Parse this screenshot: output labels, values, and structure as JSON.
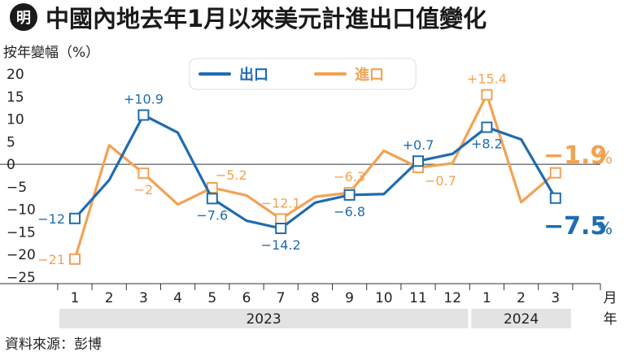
{
  "header": {
    "logo_char": "明",
    "title": "中國內地去年1月以來美元計進出口值變化"
  },
  "source": "資料來源：彭博",
  "colors": {
    "export": "#1f6cb0",
    "import": "#f2a253",
    "axis": "#333333",
    "year_band": "#e3e3e3",
    "logo_bg": "#1a1a1a"
  },
  "chart_data": {
    "type": "line",
    "ylabel": "按年變幅（%）",
    "ylim": [
      -25,
      20
    ],
    "yticks": [
      20,
      15,
      10,
      5,
      0,
      -5,
      -10,
      -15,
      -20,
      -25
    ],
    "categories": [
      "1",
      "2",
      "3",
      "4",
      "5",
      "6",
      "7",
      "8",
      "9",
      "10",
      "11",
      "12",
      "1",
      "2",
      "3"
    ],
    "month_label": "月",
    "year_label": "年",
    "years": [
      {
        "label": "2023",
        "from": 0,
        "to": 11
      },
      {
        "label": "2024",
        "from": 12,
        "to": 14
      }
    ],
    "legend": {
      "position": "top-center"
    },
    "series": [
      {
        "name": "出口",
        "key": "export",
        "values": [
          -12,
          -3.5,
          10.9,
          7,
          -7.6,
          -12.5,
          -14.2,
          -8.5,
          -6.8,
          -6.6,
          0.7,
          2.3,
          8.2,
          5.5,
          -7.5
        ],
        "labels": [
          {
            "i": 0,
            "text": "−12",
            "pos": "left"
          },
          {
            "i": 2,
            "text": "+10.9",
            "pos": "above"
          },
          {
            "i": 4,
            "text": "−7.6",
            "pos": "below"
          },
          {
            "i": 6,
            "text": "−14.2",
            "pos": "below"
          },
          {
            "i": 8,
            "text": "−6.8",
            "pos": "below"
          },
          {
            "i": 10,
            "text": "+0.7",
            "pos": "above"
          },
          {
            "i": 12,
            "text": "+8.2",
            "pos": "below"
          }
        ],
        "markers": [
          0,
          2,
          4,
          6,
          8,
          10,
          12,
          14
        ],
        "latest": {
          "text": "−7.5",
          "unit": "%"
        }
      },
      {
        "name": "進口",
        "key": "import",
        "values": [
          -21,
          4.2,
          -2,
          -8.9,
          -5.2,
          -6.9,
          -12.1,
          -7.2,
          -6.3,
          3,
          -0.7,
          0.2,
          15.4,
          -8.4,
          -1.9
        ],
        "labels": [
          {
            "i": 0,
            "text": "−21",
            "pos": "left"
          },
          {
            "i": 2,
            "text": "−2",
            "pos": "below"
          },
          {
            "i": 4,
            "text": "−5.2",
            "pos": "aboveright"
          },
          {
            "i": 6,
            "text": "−12.1",
            "pos": "above"
          },
          {
            "i": 8,
            "text": "−6.3",
            "pos": "above"
          },
          {
            "i": 10,
            "text": "−0.7",
            "pos": "belowright"
          },
          {
            "i": 12,
            "text": "+15.4",
            "pos": "above"
          }
        ],
        "markers": [
          0,
          2,
          4,
          6,
          8,
          10,
          12,
          14
        ],
        "latest": {
          "text": "−1.9",
          "unit": "%"
        }
      }
    ]
  }
}
